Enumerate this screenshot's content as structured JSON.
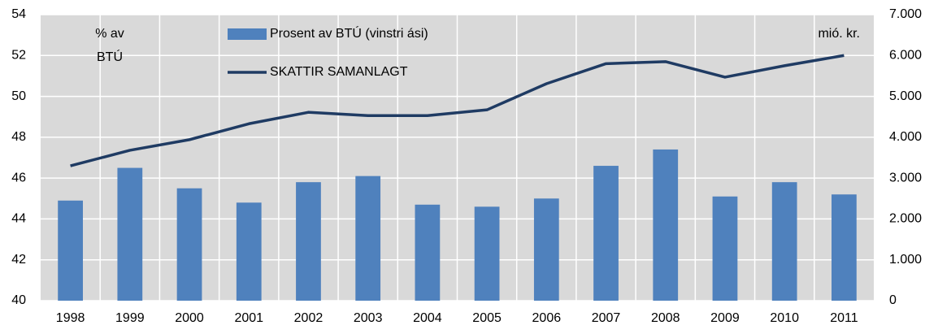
{
  "chart_data": {
    "type": "combo",
    "categories": [
      "1998",
      "1999",
      "2000",
      "2001",
      "2002",
      "2003",
      "2004",
      "2005",
      "2006",
      "2007",
      "2008",
      "2009",
      "2010",
      "2011"
    ],
    "series": [
      {
        "name": "Prosent av BTÚ (vinstri ási)",
        "type": "bar",
        "axis": "y",
        "color": "#4f81bd",
        "values": [
          44.9,
          46.5,
          45.5,
          44.8,
          45.8,
          46.1,
          44.7,
          44.6,
          45.0,
          46.6,
          47.4,
          45.1,
          45.8,
          45.2
        ]
      },
      {
        "name": "SKATTIR SAMANLAGT",
        "type": "line",
        "axis": "y2",
        "color": "#1f3b63",
        "values": [
          3300,
          3680,
          3940,
          4330,
          4610,
          4530,
          4530,
          4670,
          5310,
          5800,
          5850,
          5470,
          5750,
          6000
        ]
      }
    ],
    "ylabel": [
      "% av",
      "BTÚ"
    ],
    "y2label": "mió. kr.",
    "ylim": [
      40,
      54
    ],
    "yticks": [
      40,
      42,
      44,
      46,
      48,
      50,
      52,
      54
    ],
    "y2lim": [
      0,
      7000
    ],
    "y2ticks": [
      0,
      {
        "value": 1000,
        "label": "1.000"
      },
      {
        "value": 2000,
        "label": "2.000"
      },
      {
        "value": 3000,
        "label": "3.000"
      },
      {
        "value": 4000,
        "label": "4.000"
      },
      {
        "value": 5000,
        "label": "5.000"
      },
      {
        "value": 6000,
        "label": "6.000"
      },
      {
        "value": 7000,
        "label": "7.000"
      }
    ],
    "grid": true,
    "legend": "top"
  }
}
